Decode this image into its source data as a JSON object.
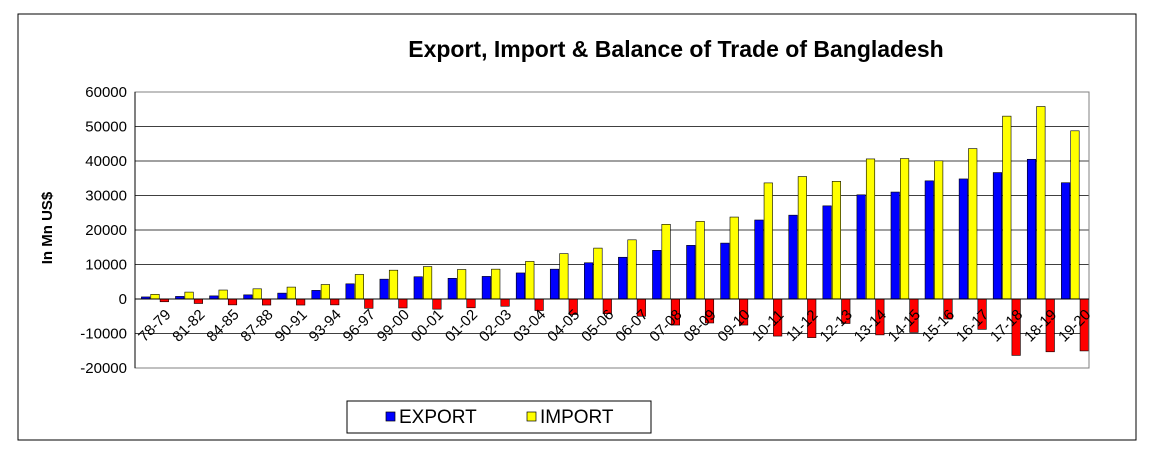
{
  "chart_data": {
    "type": "bar",
    "title": "Export, Import & Balance of Trade of Bangladesh",
    "ylabel": "In Mn US$",
    "xlabel": "",
    "ylim": [
      -20000,
      60000
    ],
    "yticks": [
      -20000,
      -10000,
      0,
      10000,
      20000,
      30000,
      40000,
      50000,
      60000
    ],
    "grid": true,
    "legend_position": "bottom-center",
    "categories": [
      "78-79",
      "81-82",
      "84-85",
      "87-88",
      "90-91",
      "93-94",
      "96-97",
      "99-00",
      "00-01",
      "01-02",
      "02-03",
      "03-04",
      "04-05",
      "05-06",
      "06-07",
      "07-08",
      "08-09",
      "09-10",
      "10-11",
      "11-12",
      "12-13",
      "13-14",
      "14-15",
      "15-16",
      "16-17",
      "17-18",
      "18-19",
      "19-20"
    ],
    "series": [
      {
        "name": "EXPORT",
        "color": "#0000ff",
        "values": [
          600,
          750,
          900,
          1200,
          1700,
          2500,
          4400,
          5750,
          6450,
          6000,
          6550,
          7550,
          8650,
          10500,
          12100,
          14100,
          15550,
          16200,
          22900,
          24300,
          27000,
          30200,
          31000,
          34250,
          34800,
          36650,
          40500,
          33700
        ]
      },
      {
        "name": "IMPORT",
        "color": "#ffff00",
        "values": [
          1350,
          2000,
          2600,
          2950,
          3450,
          4200,
          7100,
          8350,
          9400,
          8550,
          8650,
          10900,
          13150,
          14750,
          17150,
          21650,
          22500,
          23750,
          33650,
          35500,
          34100,
          40600,
          40700,
          40050,
          43600,
          53000,
          55800,
          48750
        ]
      },
      {
        "name": "",
        "color": "#ff0000",
        "values": [
          -800,
          -1300,
          -1700,
          -1750,
          -1750,
          -1700,
          -2700,
          -2600,
          -2950,
          -2550,
          -2100,
          -3350,
          -4500,
          -4250,
          -5000,
          -7550,
          -6950,
          -7550,
          -10750,
          -11200,
          -7100,
          -10400,
          -9700,
          -5800,
          -8800,
          -16350,
          -15300,
          -15050
        ]
      }
    ]
  }
}
